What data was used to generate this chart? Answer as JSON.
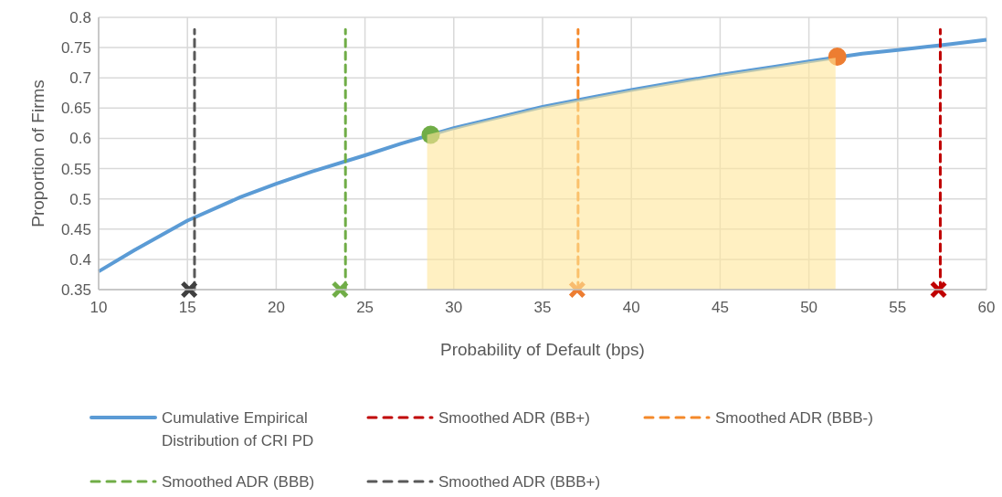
{
  "chart_data": {
    "type": "line",
    "xlabel": "Probability of Default (bps)",
    "ylabel": "Proportion of Firms",
    "xlim": [
      10,
      60
    ],
    "xticks": [
      10,
      15,
      20,
      25,
      30,
      35,
      40,
      45,
      50,
      55,
      60
    ],
    "ylim": [
      0.35,
      0.8
    ],
    "yticks": [
      0.35,
      0.4,
      0.45,
      0.5,
      0.55,
      0.6,
      0.65,
      0.7,
      0.75,
      0.8
    ],
    "grid": true,
    "legend": "bottom",
    "series": [
      {
        "type": "area",
        "color": "#ffe699",
        "x": [
          28.5,
          30,
          32,
          35,
          38,
          40,
          42,
          45,
          48,
          50,
          51.5
        ],
        "values": [
          0.606,
          0.617,
          0.631,
          0.652,
          0.669,
          0.68,
          0.69,
          0.705,
          0.718,
          0.727,
          0.733
        ]
      },
      {
        "name": "Cumulative Empirical Distribution of CRI PD",
        "color": "#5b9bd5",
        "line_style": "solid",
        "marker": "none",
        "x": [
          10,
          12,
          15,
          18,
          20,
          22,
          25,
          27,
          30,
          32,
          35,
          38,
          40,
          42,
          45,
          48,
          50,
          53,
          55,
          58,
          60
        ],
        "values": [
          0.38,
          0.415,
          0.464,
          0.503,
          0.525,
          0.545,
          0.572,
          0.591,
          0.617,
          0.631,
          0.652,
          0.669,
          0.68,
          0.69,
          0.705,
          0.718,
          0.727,
          0.74,
          0.746,
          0.756,
          0.763
        ]
      },
      {
        "name": "Smoothed ADR (BB+)",
        "type": "line",
        "color": "#c00000",
        "line_style": "dashed",
        "marker": "none",
        "x": [
          57.4,
          57.4
        ],
        "values": [
          0.35,
          0.78
        ]
      },
      {
        "name": "Smoothed ADR (BBB-)",
        "type": "line",
        "color": "#f4892a",
        "line_style": "dashed",
        "marker": "none",
        "x": [
          37,
          37
        ],
        "values": [
          0.35,
          0.78
        ]
      },
      {
        "name": "Smoothed ADR (BBB)",
        "type": "line",
        "color": "#70ad47",
        "line_style": "dashed",
        "marker": "none",
        "x": [
          23.9,
          23.9
        ],
        "values": [
          0.35,
          0.78
        ]
      },
      {
        "name": "Smoothed ADR (BBB+)",
        "type": "line",
        "color": "#595959",
        "line_style": "dashed",
        "marker": "none",
        "x": [
          15.4,
          15.4
        ],
        "values": [
          0.35,
          0.78
        ]
      },
      {
        "type": "scatter",
        "color": "#404040",
        "marker": "cross",
        "x": [
          15.1
        ],
        "values": [
          0.35
        ]
      },
      {
        "type": "scatter",
        "color": "#70ad47",
        "marker": "cross",
        "x": [
          23.6
        ],
        "values": [
          0.35
        ]
      },
      {
        "type": "scatter",
        "color": "#ed7d31",
        "marker": "cross",
        "x": [
          36.95
        ],
        "values": [
          0.35
        ]
      },
      {
        "type": "scatter",
        "color": "#c00000",
        "marker": "cross",
        "x": [
          57.3
        ],
        "values": [
          0.35
        ]
      },
      {
        "type": "scatter",
        "color": "#70ad47",
        "marker": "circle",
        "x": [
          28.7
        ],
        "values": [
          0.606
        ]
      },
      {
        "type": "scatter",
        "color": "#ed7d31",
        "marker": "circle",
        "x": [
          51.6
        ],
        "values": [
          0.735
        ]
      }
    ]
  }
}
